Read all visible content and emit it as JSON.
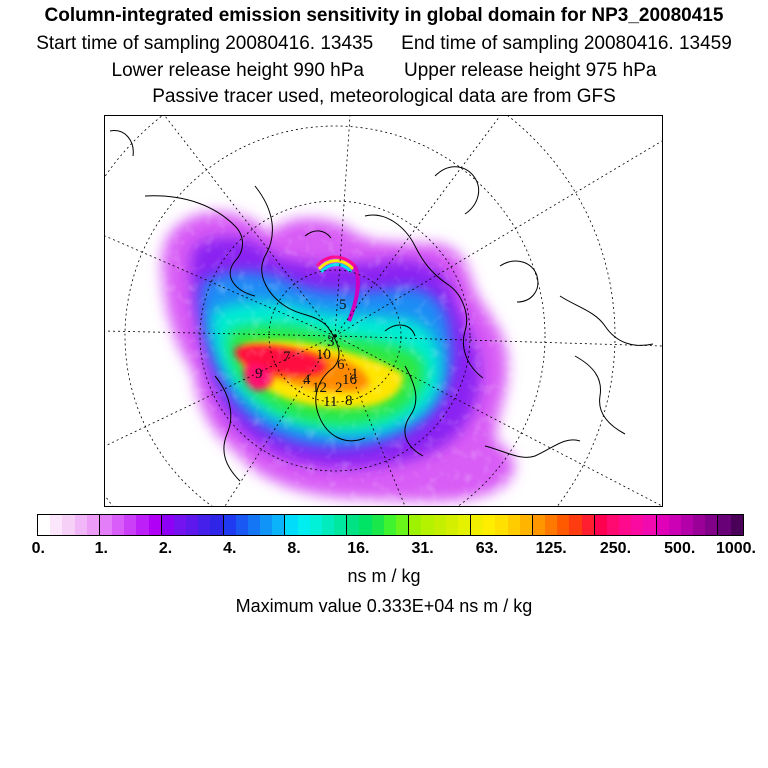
{
  "header": {
    "title": "Column-integrated emission sensitivity in global domain for NP3_20080415",
    "start_time": "Start time of sampling 20080416. 13435",
    "end_time": "End time of sampling 20080416. 13459",
    "lower_height": "Lower release height  990 hPa",
    "upper_height": "Upper release height  975 hPa",
    "tracer_note": "Passive tracer used, meteorological data are from GFS"
  },
  "map": {
    "projection": "polar stereographic (north pole)",
    "labels": [
      "5",
      "3",
      "7",
      "10",
      "9",
      "6",
      "1",
      "4",
      "12",
      "2",
      "11",
      "8",
      "16"
    ]
  },
  "colorbar": {
    "ticks": [
      "0.",
      "1.",
      "2.",
      "4.",
      "8.",
      "16.",
      "31.",
      "63.",
      "125.",
      "250.",
      "500.",
      "1000."
    ],
    "units": "ns m / kg",
    "colors": [
      "#ffffff",
      "#fbe6fb",
      "#f7d0f8",
      "#f1b6f7",
      "#ec9cf7",
      "#e47ef8",
      "#d95df8",
      "#cc3ff8",
      "#bd1ff8",
      "#b000f5",
      "#8e00f5",
      "#7512f0",
      "#5e18ec",
      "#4420ea",
      "#2e25e8",
      "#1f3af0",
      "#1a58f3",
      "#1576f5",
      "#1194f8",
      "#0bb3fb",
      "#00dcfa",
      "#00eef0",
      "#00f0d8",
      "#00ecbc",
      "#00e89f",
      "#00e283",
      "#00e466",
      "#1ae84a",
      "#3ff42e",
      "#6af51a",
      "#9ef200",
      "#b4f200",
      "#c4f000",
      "#d4f000",
      "#e4f200",
      "#f2ee00",
      "#ffee00",
      "#ffe000",
      "#ffcc00",
      "#ffb400",
      "#ff9600",
      "#ff7800",
      "#ff5a00",
      "#ff3c10",
      "#ff1d30",
      "#ff0050",
      "#ff0a70",
      "#ff0a8c",
      "#fa0aa0",
      "#f00ab0",
      "#e000b8",
      "#cc00b4",
      "#b400a8",
      "#9a0098",
      "#80008a",
      "#680078",
      "#4a0058"
    ]
  },
  "max_value": "Maximum value  0.333E+04 ns m / kg"
}
